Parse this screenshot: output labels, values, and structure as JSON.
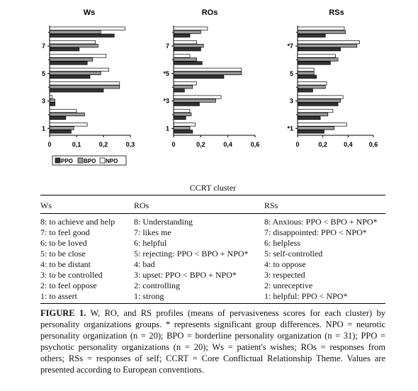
{
  "chart_data": [
    {
      "type": "bar",
      "orientation": "horizontal",
      "title": "Ws",
      "categories": [
        "1",
        "2",
        "3",
        "4",
        "5",
        "6",
        "7",
        "8"
      ],
      "ytick_labels": [
        "1",
        "3",
        "5",
        "7"
      ],
      "xtick_labels": [
        "0",
        "0,1",
        "0,2",
        "0,3"
      ],
      "xlim": [
        0,
        0.3
      ],
      "series": [
        {
          "name": "PPO",
          "values": [
            0.08,
            0.06,
            0.02,
            0.2,
            0.15,
            0.14,
            0.11,
            0.24
          ]
        },
        {
          "name": "BPO",
          "values": [
            0.09,
            0.13,
            0.02,
            0.26,
            0.19,
            0.16,
            0.18,
            0.19
          ]
        },
        {
          "name": "NPO",
          "values": [
            0.14,
            0.1,
            0.01,
            0.26,
            0.22,
            0.21,
            0.17,
            0.28
          ]
        }
      ]
    },
    {
      "type": "bar",
      "orientation": "horizontal",
      "title": "ROs",
      "categories": [
        "1",
        "2",
        "3",
        "4",
        "5",
        "6",
        "7",
        "8"
      ],
      "ytick_labels": [
        "1",
        "*3",
        "*5",
        "7"
      ],
      "xtick_labels": [
        "0",
        "0,2",
        "0,4",
        "0,6"
      ],
      "xlim": [
        0,
        0.6
      ],
      "series": [
        {
          "name": "PPO",
          "values": [
            0.14,
            0.09,
            0.19,
            0.08,
            0.37,
            0.21,
            0.2,
            0.12
          ]
        },
        {
          "name": "BPO",
          "values": [
            0.12,
            0.13,
            0.31,
            0.14,
            0.5,
            0.17,
            0.22,
            0.2
          ]
        },
        {
          "name": "NPO",
          "values": [
            0.16,
            0.12,
            0.35,
            0.17,
            0.5,
            0.12,
            0.17,
            0.25
          ]
        }
      ]
    },
    {
      "type": "bar",
      "orientation": "horizontal",
      "title": "RSs",
      "categories": [
        "1",
        "2",
        "3",
        "4",
        "5",
        "6",
        "7",
        "8"
      ],
      "ytick_labels": [
        "*1",
        "3",
        "5",
        "*7"
      ],
      "xtick_labels": [
        "0",
        "0,2",
        "0,4",
        "0,6"
      ],
      "xlim": [
        0,
        0.6
      ],
      "series": [
        {
          "name": "PPO",
          "values": [
            0.21,
            0.18,
            0.32,
            0.12,
            0.15,
            0.26,
            0.34,
            0.22
          ]
        },
        {
          "name": "BPO",
          "values": [
            0.29,
            0.24,
            0.34,
            0.22,
            0.13,
            0.32,
            0.47,
            0.38
          ]
        },
        {
          "name": "NPO",
          "values": [
            0.39,
            0.28,
            0.36,
            0.23,
            0.13,
            0.3,
            0.49,
            0.37
          ]
        }
      ]
    }
  ],
  "legend": [
    {
      "label": "PPO",
      "fill": "#333333"
    },
    {
      "label": "BPO",
      "fill": "#9a9a9a"
    },
    {
      "label": "NPO",
      "fill": "#ffffff"
    }
  ],
  "colors": {
    "ppo": "#333333",
    "bpo": "#9a9a9a",
    "npo": "#ffffff"
  },
  "table": {
    "title": "CCRT cluster",
    "headers": [
      "Ws",
      "ROs",
      "RSs"
    ],
    "columns": [
      [
        "8: to achieve and help",
        "7: to feel good",
        "6: to be loved",
        "5: to be close",
        "4: to be distant",
        "3: to be controlled",
        "2: to feel oppose",
        "1: to assert"
      ],
      [
        "8: Understanding",
        "7: likes me",
        "6: helpful",
        "5: rejecting: PPO < BPO + NPO*",
        "4: bad",
        "3: upset: PPO < BPO + NPO*",
        "2: controlling",
        "1: strong"
      ],
      [
        "8: Anxious: PPO < BPO + NPO*",
        "7: disappointed: PPO < NPO*",
        "6: helpless",
        "5: self-controlled",
        "4: to oppose",
        "3: respected",
        "2: unreceptive",
        "1: helpful: PPO < NPO*"
      ]
    ]
  },
  "caption": {
    "label": "FIGURE 1.",
    "text": " W, RO, and RS profiles (means of pervasiveness scores for each cluster) by personality organizations groups. * represents significant group differences. NPO = neurotic personality organization (n = 20); BPO = borderline personality organization (n = 31); PPO = psychotic personality organizations (n = 20); Ws = patient's wishes; ROs = responses from others; RSs = responses of self; CCRT = Core Conflictual Relationship Theme. Values are presented according to European conventions."
  }
}
